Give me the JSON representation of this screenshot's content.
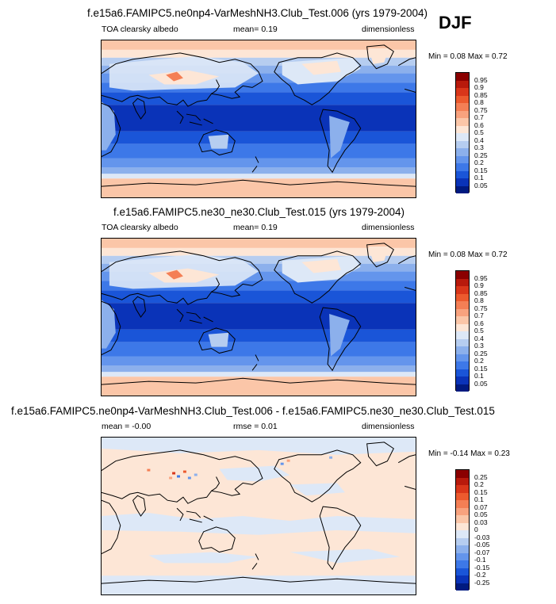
{
  "season": "DJF",
  "panels": [
    {
      "title": "f.e15a6.FAMIPC5.ne0np4-VarMeshNH3.Club_Test.006 (yrs 1979-2004)",
      "left_label": "TOA clearsky albedo",
      "center_label": "mean=  0.19",
      "right_label": "dimensionless",
      "minmax": "Min =  0.08 Max =  0.72",
      "colorbar_labels": [
        "0.95",
        "0.9",
        "0.85",
        "0.8",
        "0.75",
        "0.7",
        "0.6",
        "0.5",
        "0.4",
        "0.3",
        "0.25",
        "0.2",
        "0.15",
        "0.1",
        "0.05"
      ]
    },
    {
      "title": "f.e15a6.FAMIPC5.ne30_ne30.Club_Test.015 (yrs 1979-2004)",
      "left_label": "TOA clearsky albedo",
      "center_label": "mean=  0.19",
      "right_label": "dimensionless",
      "minmax": "Min =  0.08 Max =  0.72",
      "colorbar_labels": [
        "0.95",
        "0.9",
        "0.85",
        "0.8",
        "0.75",
        "0.7",
        "0.6",
        "0.5",
        "0.4",
        "0.3",
        "0.25",
        "0.2",
        "0.15",
        "0.1",
        "0.05"
      ]
    },
    {
      "title": "f.e15a6.FAMIPC5.ne0np4-VarMeshNH3.Club_Test.006 - f.e15a6.FAMIPC5.ne30_ne30.Club_Test.015",
      "left_label": "mean =  -0.00",
      "center_label": "rmse =  0.01",
      "right_label": "dimensionless",
      "minmax": "Min =  -0.14 Max =  0.23",
      "colorbar_labels": [
        "0.25",
        "0.2",
        "0.15",
        "0.1",
        "0.07",
        "0.05",
        "0.03",
        "0",
        "-0.03",
        "-0.05",
        "-0.07",
        "-0.1",
        "-0.15",
        "-0.2",
        "-0.25"
      ]
    }
  ],
  "colors": {
    "abs_scale": [
      "#8b0000",
      "#b81a0c",
      "#d9361a",
      "#ec5a2e",
      "#f47f55",
      "#f8a27e",
      "#fbc6a8",
      "#fde6d6",
      "#dde8f7",
      "#b6cdf0",
      "#8cb0ec",
      "#6495ec",
      "#3d78e8",
      "#1a55d8",
      "#0a33b8",
      "#001a80"
    ],
    "diff_scale": [
      "#8b0000",
      "#b81a0c",
      "#d9361a",
      "#ec5a2e",
      "#f47f55",
      "#f8a27e",
      "#fbc6a8",
      "#fde6d6",
      "#dde8f7",
      "#b6cdf0",
      "#8cb0ec",
      "#6495ec",
      "#3d78e8",
      "#1a55d8",
      "#0a33b8",
      "#001a80"
    ]
  }
}
